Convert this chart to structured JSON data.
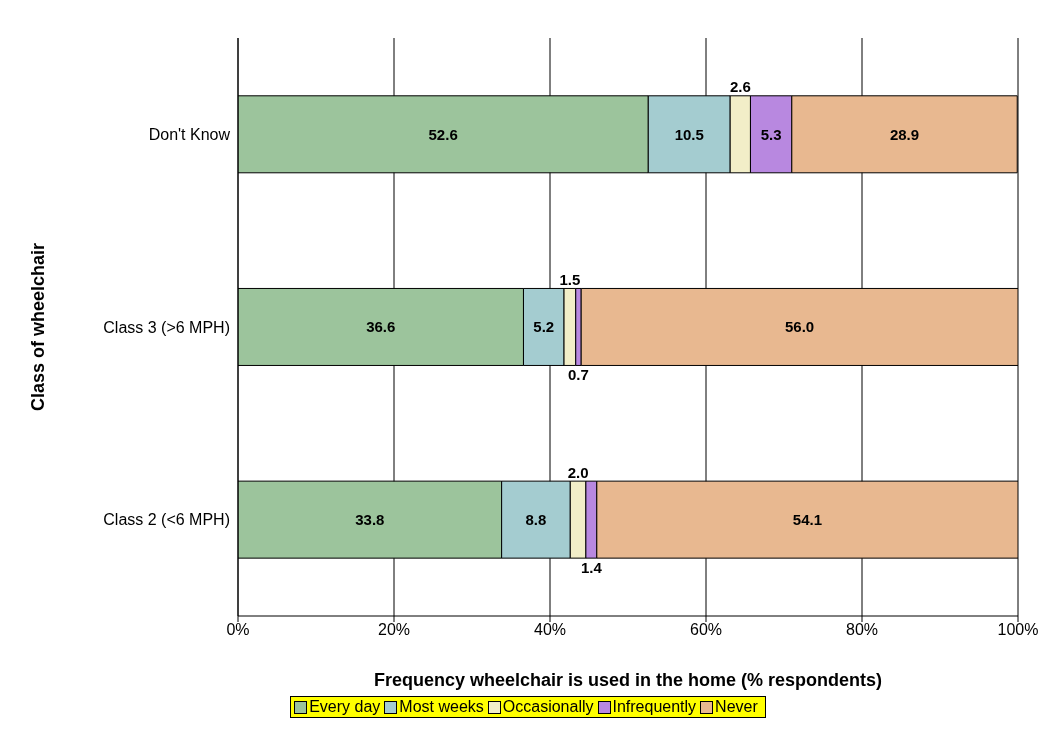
{
  "chart_data": {
    "type": "bar",
    "orientation": "horizontal",
    "stacked": true,
    "xlabel": "Frequency wheelchair is used in the home (% respondents)",
    "ylabel": "Class of wheelchair",
    "categories": [
      "Don't Know",
      "Class 3 (>6 MPH)",
      "Class 2 (<6 MPH)"
    ],
    "series": [
      {
        "name": "Every day",
        "color": "#9cc49c",
        "values": [
          52.6,
          36.6,
          33.8
        ],
        "value_labels": [
          "52.6",
          "36.6",
          "33.8"
        ]
      },
      {
        "name": "Most weeks",
        "color": "#a4ccd0",
        "values": [
          10.5,
          5.2,
          8.8
        ],
        "value_labels": [
          "10.5",
          "5.2",
          "8.8"
        ]
      },
      {
        "name": "Occasionally",
        "color": "#f2eec8",
        "values": [
          2.6,
          1.5,
          2.0
        ],
        "value_labels": [
          "2.6",
          "1.5",
          "2.0"
        ]
      },
      {
        "name": "Infrequently",
        "color": "#b888e0",
        "values": [
          5.3,
          0.7,
          1.4
        ],
        "value_labels": [
          "5.3",
          "0.7",
          "1.4"
        ]
      },
      {
        "name": "Never",
        "color": "#e8b890",
        "values": [
          28.9,
          56.0,
          54.1
        ],
        "value_labels": [
          "28.9",
          "56.0",
          "54.1"
        ]
      }
    ],
    "xlim": [
      0,
      100
    ],
    "xticks": [
      {
        "value": 0,
        "label": "0%"
      },
      {
        "value": 20,
        "label": "20%"
      },
      {
        "value": 40,
        "label": "40%"
      },
      {
        "value": 60,
        "label": "60%"
      },
      {
        "value": 80,
        "label": "80%"
      },
      {
        "value": 100,
        "label": "100%"
      }
    ],
    "grid": "x",
    "legend": "bottom"
  }
}
